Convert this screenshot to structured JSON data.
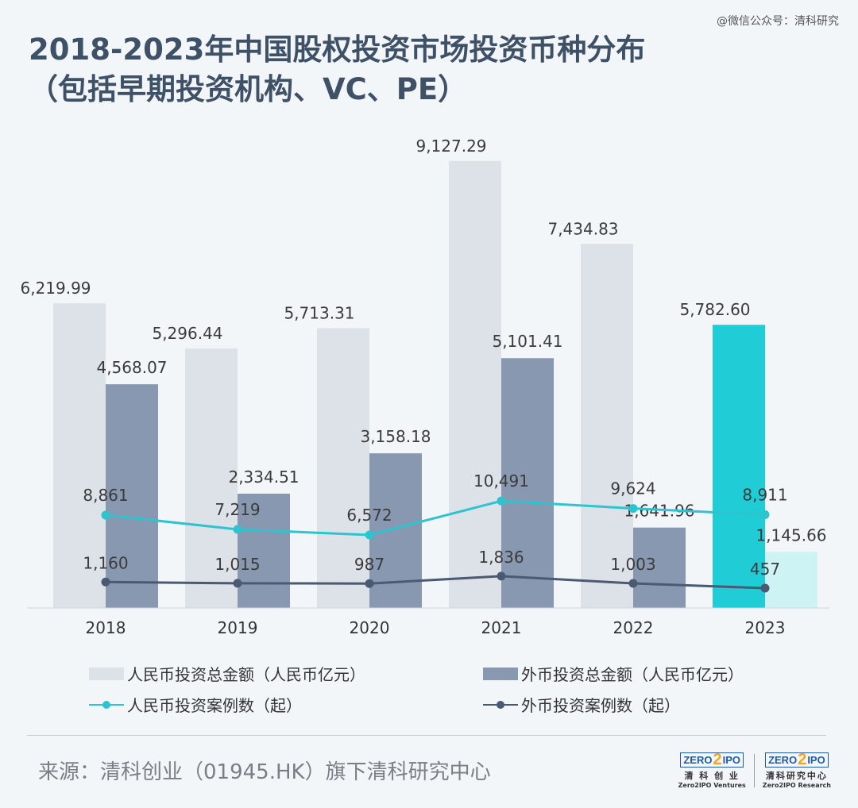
{
  "watermark": "@微信公众号：清科研究",
  "title": {
    "line1": "2018-2023年中国股权投资市场投资币种分布",
    "line2": "（包括早期投资机构、VC、PE）"
  },
  "colors": {
    "background": "#f3f6f9",
    "rmb_amount_bar": "#dde1e8",
    "fx_amount_bar": "#8798b0",
    "rmb_amount_bar_2023": "#20ccd5",
    "fx_amount_bar_2023": "#cdf3f5",
    "rmb_cases_line": "#2ec4cf",
    "fx_cases_line": "#4a5a72"
  },
  "chart_data": {
    "type": "bar",
    "categories": [
      "2018",
      "2019",
      "2020",
      "2021",
      "2022",
      "2023"
    ],
    "series": [
      {
        "name": "人民币投资总金额（人民币亿元）",
        "kind": "bar",
        "values": [
          6219.99,
          5296.44,
          5713.31,
          9127.29,
          7434.83,
          5782.6
        ],
        "labels": [
          "6,219.99",
          "5,296.44",
          "5,713.31",
          "9,127.29",
          "7,434.83",
          "5,782.60"
        ]
      },
      {
        "name": "外币投资总金额（人民币亿元）",
        "kind": "bar",
        "values": [
          4568.07,
          2334.51,
          3158.18,
          5101.41,
          1641.96,
          1145.66
        ],
        "labels": [
          "4,568.07",
          "2,334.51",
          "3,158.18",
          "5,101.41",
          "1,641.96",
          "1,145.66"
        ]
      },
      {
        "name": "人民币投资案例数（起）",
        "kind": "line",
        "values": [
          8861,
          7219,
          6572,
          10491,
          9624,
          8911
        ],
        "labels": [
          "8,861",
          "7,219",
          "6,572",
          "10,491",
          "9,624",
          "8,911"
        ]
      },
      {
        "name": "外币投资案例数（起）",
        "kind": "line",
        "values": [
          1160,
          1015,
          987,
          1836,
          1003,
          457
        ],
        "labels": [
          "1,160",
          "1,015",
          "987",
          "1,836",
          "1,003",
          "457"
        ]
      }
    ],
    "legend_position": "bottom",
    "grid": false
  },
  "legend": [
    {
      "label": "人民币投资总金额（人民币亿元）"
    },
    {
      "label": "外币投资总金额（人民币亿元）"
    },
    {
      "label": "人民币投资案例数（起）"
    },
    {
      "label": "外币投资案例数（起）"
    }
  ],
  "source": "来源：清科创业（01945.HK）旗下清科研究中心",
  "logos": [
    {
      "box_left": "ZERO",
      "box_two": "2",
      "box_right": "IPO",
      "cn": "清 科 创 业",
      "en": "Zero2IPO Ventures"
    },
    {
      "box_left": "ZERO",
      "box_two": "2",
      "box_right": "IPO",
      "cn": "清科研究中心",
      "en": "Zero2IPO Research"
    }
  ]
}
